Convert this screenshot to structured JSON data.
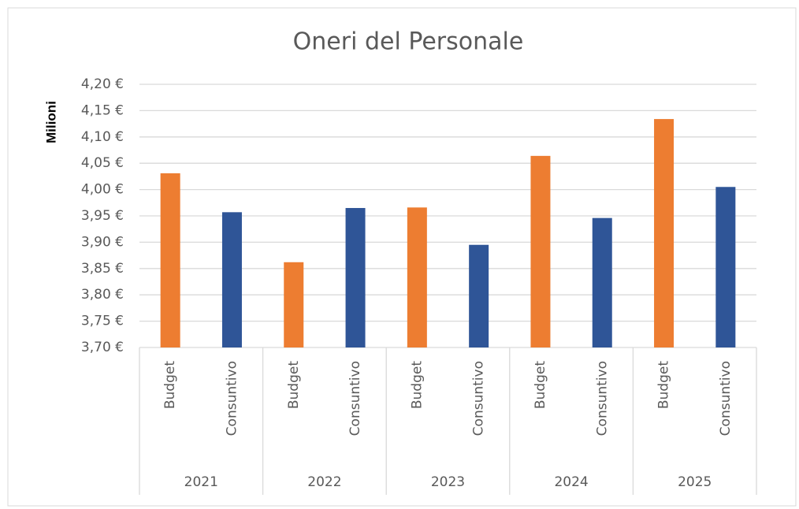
{
  "chart_data": {
    "type": "bar",
    "title": "Oneri del Personale",
    "y_axis_label": "Milioni",
    "categories": [
      "2021",
      "2022",
      "2023",
      "2024",
      "2025"
    ],
    "series": [
      {
        "name": "Budget",
        "color": "#ed7d31",
        "values": [
          4.031,
          3.862,
          3.966,
          4.064,
          4.134
        ]
      },
      {
        "name": "Consuntivo",
        "color": "#2f5597",
        "values": [
          3.957,
          3.965,
          3.895,
          3.946,
          4.005
        ]
      }
    ],
    "ylim": [
      3.7,
      4.2
    ],
    "yticks": [
      {
        "value": 3.7,
        "label": "3,70 €"
      },
      {
        "value": 3.75,
        "label": "3,75 €"
      },
      {
        "value": 3.8,
        "label": "3,80 €"
      },
      {
        "value": 3.85,
        "label": "3,85 €"
      },
      {
        "value": 3.9,
        "label": "3,90 €"
      },
      {
        "value": 3.95,
        "label": "3,95 €"
      },
      {
        "value": 4.0,
        "label": "4,00 €"
      },
      {
        "value": 4.05,
        "label": "4,05 €"
      },
      {
        "value": 4.1,
        "label": "4,10 €"
      },
      {
        "value": 4.15,
        "label": "4,15 €"
      },
      {
        "value": 4.2,
        "label": "4,20 €"
      }
    ],
    "grid": true
  }
}
